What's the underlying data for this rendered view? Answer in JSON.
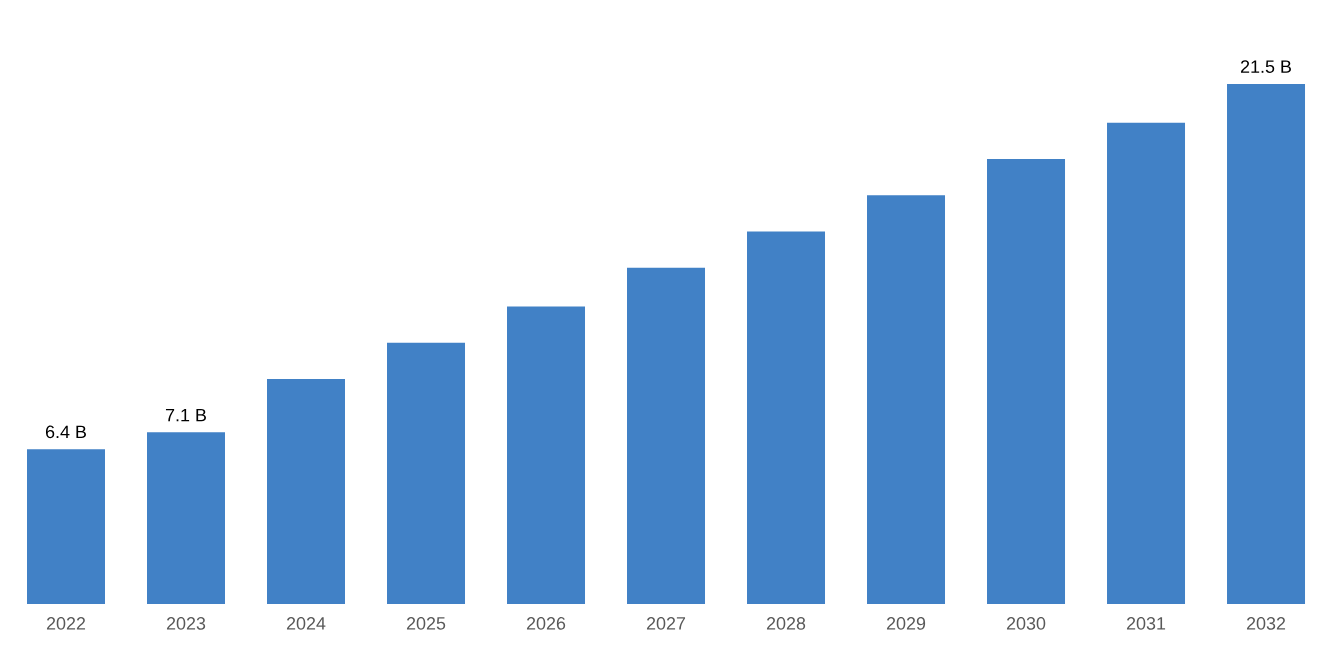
{
  "chart_data": {
    "type": "bar",
    "categories": [
      "2022",
      "2023",
      "2024",
      "2025",
      "2026",
      "2027",
      "2028",
      "2029",
      "2030",
      "2031",
      "2032"
    ],
    "values": [
      6.4,
      7.1,
      9.3,
      10.8,
      12.3,
      13.9,
      15.4,
      16.9,
      18.4,
      19.9,
      21.5
    ],
    "value_labels": [
      "6.4 B",
      "7.1 B",
      null,
      null,
      null,
      null,
      null,
      null,
      null,
      null,
      "21.5 B"
    ],
    "color": "#4181c6"
  }
}
